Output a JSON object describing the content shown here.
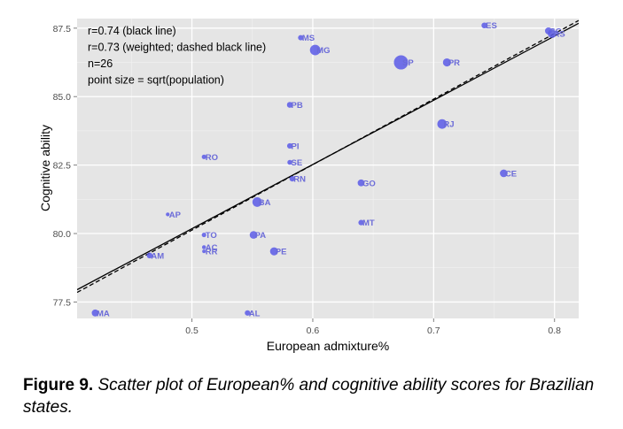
{
  "chart_data": {
    "type": "scatter",
    "xlabel": "European admixture%",
    "ylabel": "Cognitive ability",
    "xlim": [
      0.405,
      0.82
    ],
    "ylim": [
      76.9,
      87.85
    ],
    "x_ticks": [
      0.5,
      0.6,
      0.7,
      0.8
    ],
    "x_tick_labels": [
      "0.5",
      "0.6",
      "0.7",
      "0.8"
    ],
    "y_ticks": [
      77.5,
      80.0,
      82.5,
      85.0,
      87.5
    ],
    "y_tick_labels": [
      "77.5",
      "80.0",
      "82.5",
      "85.0",
      "87.5"
    ],
    "grid": true,
    "point_color": "#5b5be8",
    "annotations": [
      "r=0.74 (black line)",
      "r=0.73 (weighted; dashed black line)",
      "n=26",
      "point size = sqrt(population)"
    ],
    "regression_lines": [
      {
        "style": "solid",
        "x": [
          0.405,
          0.82
        ],
        "y": [
          77.95,
          87.68
        ]
      },
      {
        "style": "dashed",
        "x": [
          0.405,
          0.82
        ],
        "y": [
          77.85,
          87.78
        ]
      }
    ],
    "points": [
      {
        "label": "ES",
        "x": 0.742,
        "y": 87.6,
        "size": 2.0
      },
      {
        "label": "SC",
        "x": 0.795,
        "y": 87.4,
        "size": 2.6
      },
      {
        "label": "RS",
        "x": 0.798,
        "y": 87.3,
        "size": 3.5
      },
      {
        "label": "MS",
        "x": 0.59,
        "y": 87.15,
        "size": 1.7
      },
      {
        "label": "MG",
        "x": 0.602,
        "y": 86.7,
        "size": 4.5
      },
      {
        "label": "SP",
        "x": 0.673,
        "y": 86.25,
        "size": 6.5
      },
      {
        "label": "PR",
        "x": 0.711,
        "y": 86.25,
        "size": 3.2
      },
      {
        "label": "PB",
        "x": 0.581,
        "y": 84.7,
        "size": 2.0
      },
      {
        "label": "RJ",
        "x": 0.707,
        "y": 84.0,
        "size": 4.0
      },
      {
        "label": "PI",
        "x": 0.581,
        "y": 83.2,
        "size": 1.8
      },
      {
        "label": "RO",
        "x": 0.51,
        "y": 82.8,
        "size": 1.3
      },
      {
        "label": "SE",
        "x": 0.581,
        "y": 82.6,
        "size": 1.5
      },
      {
        "label": "CE",
        "x": 0.758,
        "y": 82.2,
        "size": 3.0
      },
      {
        "label": "RN",
        "x": 0.583,
        "y": 82.0,
        "size": 1.8
      },
      {
        "label": "GO",
        "x": 0.64,
        "y": 81.85,
        "size": 2.6
      },
      {
        "label": "BA",
        "x": 0.554,
        "y": 81.15,
        "size": 4.0
      },
      {
        "label": "AP",
        "x": 0.48,
        "y": 80.7,
        "size": 0.9
      },
      {
        "label": "MT",
        "x": 0.64,
        "y": 80.4,
        "size": 1.8
      },
      {
        "label": "TO",
        "x": 0.51,
        "y": 79.95,
        "size": 1.3
      },
      {
        "label": "PA",
        "x": 0.551,
        "y": 79.95,
        "size": 3.0
      },
      {
        "label": "AC",
        "x": 0.51,
        "y": 79.5,
        "size": 1.0
      },
      {
        "label": "RR",
        "x": 0.51,
        "y": 79.35,
        "size": 0.8
      },
      {
        "label": "PE",
        "x": 0.568,
        "y": 79.35,
        "size": 3.2
      },
      {
        "label": "AM",
        "x": 0.465,
        "y": 79.2,
        "size": 2.0
      },
      {
        "label": "MA",
        "x": 0.42,
        "y": 77.1,
        "size": 2.6
      },
      {
        "label": "AL",
        "x": 0.546,
        "y": 77.1,
        "size": 1.8
      }
    ]
  },
  "caption": {
    "label": "Figure 9.",
    "text": "Scatter plot of European% and cognitive ability scores for Brazilian states."
  }
}
